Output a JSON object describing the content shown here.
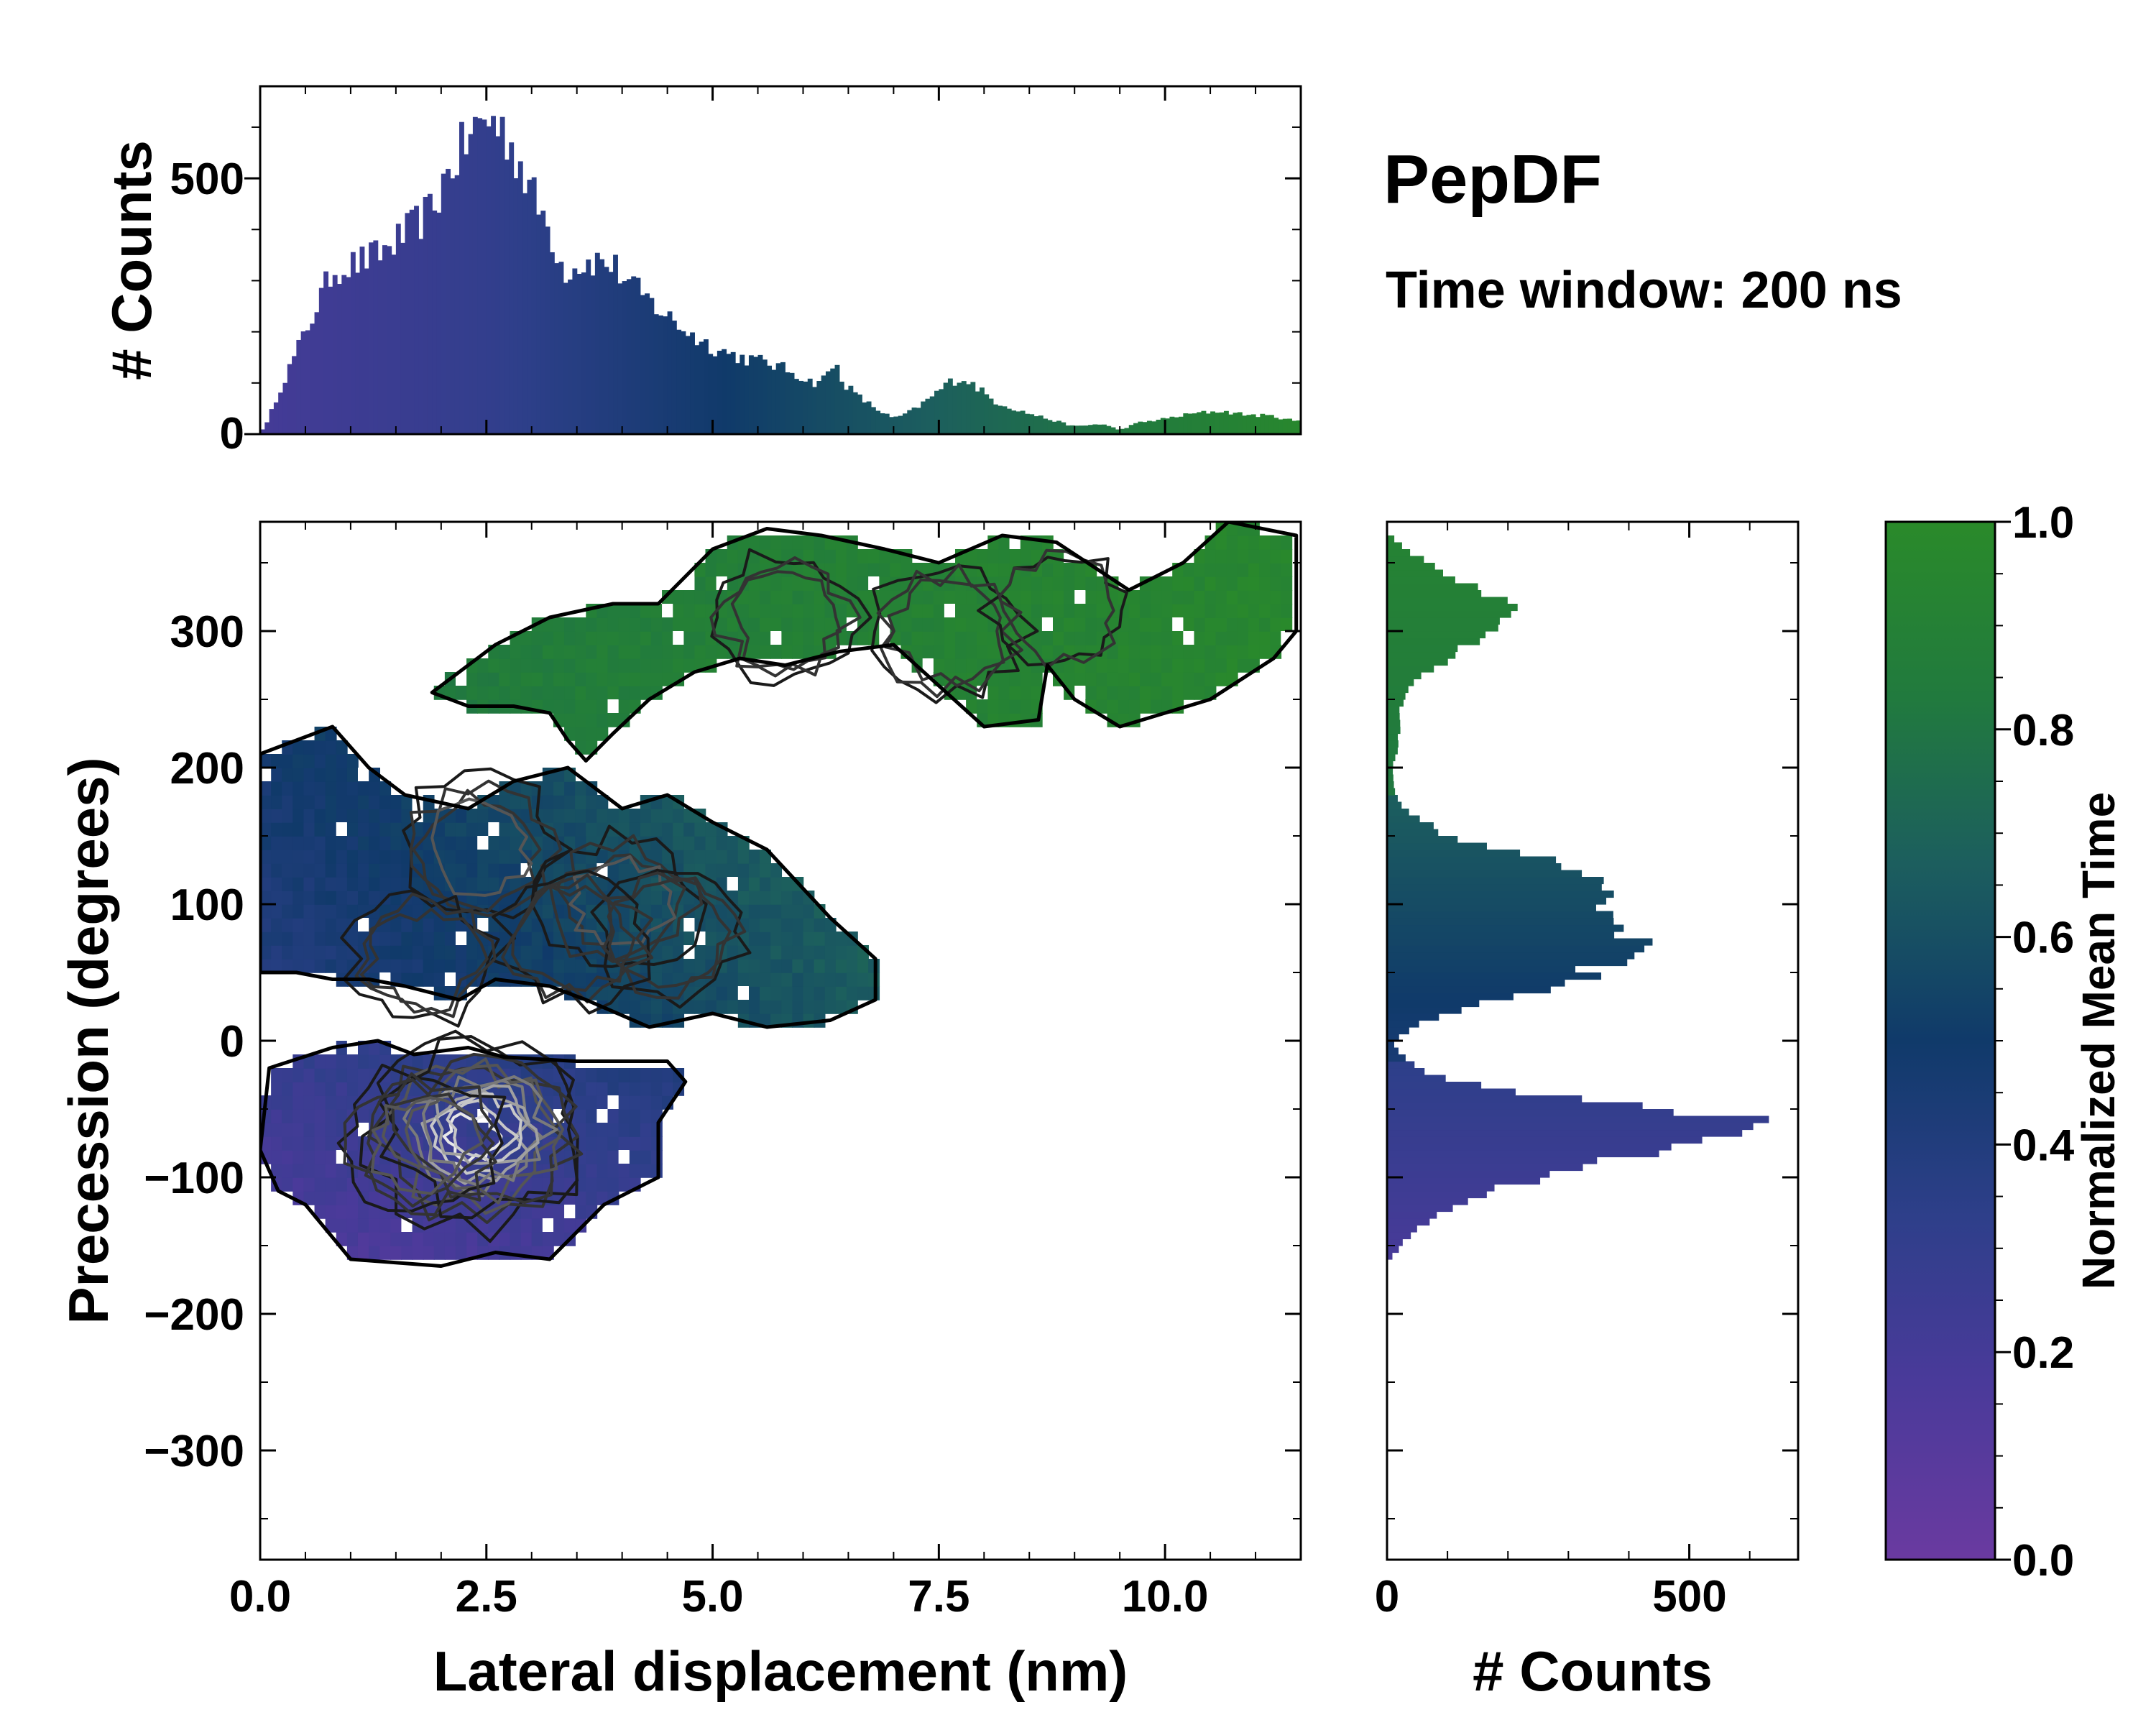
{
  "annotations": {
    "title": "PepDF",
    "subtitle": "Time window: 200 ns"
  },
  "colors": {
    "cmap": [
      "#6a3aa0",
      "#4a3a9a",
      "#2e3f8a",
      "#103a6a",
      "#1c5e5e",
      "#217a3e",
      "#2a8a2a"
    ],
    "axis": "#000000",
    "background": "#ffffff"
  },
  "chart_data": [
    {
      "id": "top_histogram",
      "type": "bar",
      "title": "",
      "xlabel": "",
      "ylabel": "# Counts",
      "xlim": [
        0,
        11.5
      ],
      "ylim": [
        0,
        680
      ],
      "x_ticks": [
        0,
        2.5,
        5.0,
        7.5,
        10.0
      ],
      "y_ticks": [
        0,
        500
      ],
      "y_tick_labels": [
        "0",
        "500"
      ],
      "bin_width": 0.05,
      "control_points": {
        "x": [
          0.05,
          0.2,
          0.5,
          0.8,
          1.0,
          1.3,
          1.6,
          1.9,
          2.1,
          2.35,
          2.5,
          2.65,
          2.8,
          3.0,
          3.2,
          3.35,
          3.5,
          3.7,
          3.9,
          4.1,
          4.3,
          4.5,
          4.8,
          5.0,
          5.3,
          5.6,
          5.9,
          6.1,
          6.25,
          6.35,
          6.45,
          6.6,
          6.8,
          7.0,
          7.2,
          7.4,
          7.6,
          7.75,
          7.9,
          8.1,
          8.4,
          8.7,
          9.0,
          9.3,
          9.5,
          9.7,
          10.0,
          10.3,
          10.6,
          10.9,
          11.2,
          11.45
        ],
        "counts": [
          10,
          80,
          200,
          320,
          330,
          350,
          390,
          440,
          520,
          590,
          620,
          600,
          560,
          470,
          400,
          320,
          330,
          340,
          330,
          290,
          260,
          230,
          190,
          170,
          150,
          140,
          120,
          100,
          110,
          140,
          100,
          75,
          50,
          30,
          45,
          70,
          100,
          110,
          95,
          65,
          45,
          30,
          15,
          20,
          8,
          22,
          30,
          40,
          45,
          38,
          35,
          25
        ]
      }
    },
    {
      "id": "main_map",
      "type": "heatmap",
      "title": "",
      "xlabel": "Lateral displacement (nm)",
      "ylabel": "Precession (degrees)",
      "xlim": [
        0,
        11.5
      ],
      "ylim": [
        -380,
        380
      ],
      "x_ticks": [
        0,
        2.5,
        5.0,
        7.5,
        10.0
      ],
      "x_tick_labels": [
        "0.0",
        "2.5",
        "5.0",
        "7.5",
        "10.0"
      ],
      "y_ticks": [
        -300,
        -200,
        -100,
        0,
        100,
        200,
        300
      ],
      "y_tick_labels": [
        "−300",
        "−200",
        "−100",
        "0",
        "100",
        "200",
        "300"
      ],
      "cell_x": 0.12,
      "cell_y": 10,
      "regions": [
        {
          "name": "negative-basin",
          "outline": [
            [
              0.0,
              -80
            ],
            [
              0.1,
              -20
            ],
            [
              0.8,
              -5
            ],
            [
              1.3,
              0
            ],
            [
              1.7,
              -10
            ],
            [
              2.3,
              -5
            ],
            [
              2.7,
              -12
            ],
            [
              3.5,
              -15
            ],
            [
              4.5,
              -15
            ],
            [
              4.7,
              -30
            ],
            [
              4.4,
              -60
            ],
            [
              4.4,
              -100
            ],
            [
              3.8,
              -120
            ],
            [
              3.5,
              -140
            ],
            [
              3.2,
              -160
            ],
            [
              2.6,
              -155
            ],
            [
              2.0,
              -165
            ],
            [
              1.0,
              -160
            ],
            [
              0.5,
              -120
            ],
            [
              0.2,
              -110
            ]
          ]
        },
        {
          "name": "middle-basin",
          "outline": [
            [
              0.0,
              50
            ],
            [
              0.0,
              210
            ],
            [
              0.4,
              220
            ],
            [
              0.8,
              230
            ],
            [
              1.2,
              200
            ],
            [
              1.6,
              180
            ],
            [
              2.3,
              170
            ],
            [
              2.8,
              190
            ],
            [
              3.4,
              200
            ],
            [
              4.0,
              170
            ],
            [
              4.5,
              180
            ],
            [
              5.0,
              160
            ],
            [
              5.6,
              140
            ],
            [
              6.3,
              90
            ],
            [
              6.8,
              60
            ],
            [
              6.8,
              30
            ],
            [
              6.3,
              15
            ],
            [
              5.6,
              10
            ],
            [
              5.0,
              20
            ],
            [
              4.3,
              10
            ],
            [
              3.6,
              30
            ],
            [
              3.2,
              40
            ],
            [
              2.6,
              45
            ],
            [
              2.2,
              30
            ],
            [
              1.6,
              40
            ],
            [
              1.2,
              45
            ],
            [
              0.8,
              45
            ],
            [
              0.4,
              50
            ]
          ]
        },
        {
          "name": "upper-band",
          "outline": [
            [
              1.9,
              255
            ],
            [
              2.6,
              290
            ],
            [
              3.2,
              310
            ],
            [
              3.9,
              320
            ],
            [
              4.4,
              320
            ],
            [
              5.0,
              360
            ],
            [
              5.6,
              375
            ],
            [
              6.2,
              370
            ],
            [
              6.9,
              360
            ],
            [
              7.5,
              350
            ],
            [
              8.2,
              370
            ],
            [
              8.8,
              365
            ],
            [
              9.6,
              330
            ],
            [
              10.2,
              350
            ],
            [
              10.7,
              380
            ],
            [
              11.45,
              370
            ],
            [
              11.45,
              300
            ],
            [
              11.2,
              280
            ],
            [
              10.5,
              250
            ],
            [
              9.5,
              230
            ],
            [
              9.0,
              250
            ],
            [
              8.7,
              275
            ],
            [
              8.6,
              235
            ],
            [
              8.0,
              230
            ],
            [
              7.5,
              260
            ],
            [
              7.0,
              290
            ],
            [
              6.4,
              285
            ],
            [
              5.8,
              275
            ],
            [
              5.3,
              280
            ],
            [
              4.8,
              270
            ],
            [
              4.3,
              250
            ],
            [
              3.9,
              225
            ],
            [
              3.6,
              205
            ],
            [
              3.4,
              220
            ],
            [
              3.2,
              240
            ],
            [
              2.8,
              245
            ],
            [
              2.3,
              245
            ]
          ]
        }
      ],
      "hotspots": [
        {
          "x": 2.35,
          "y": -70,
          "weight": 1.0
        },
        {
          "x": 2.5,
          "y": -65,
          "weight": 0.85
        },
        {
          "x": 1.8,
          "y": -75,
          "weight": 0.6
        },
        {
          "x": 2.4,
          "y": 140,
          "weight": 0.55
        },
        {
          "x": 4.0,
          "y": 100,
          "weight": 0.5
        },
        {
          "x": 4.5,
          "y": 80,
          "weight": 0.45
        },
        {
          "x": 3.5,
          "y": 75,
          "weight": 0.45
        },
        {
          "x": 1.8,
          "y": 60,
          "weight": 0.4
        },
        {
          "x": 5.8,
          "y": 310,
          "weight": 0.4
        },
        {
          "x": 7.6,
          "y": 300,
          "weight": 0.45
        },
        {
          "x": 8.8,
          "y": 315,
          "weight": 0.3
        }
      ]
    },
    {
      "id": "right_histogram",
      "type": "bar",
      "orientation": "horizontal",
      "title": "",
      "xlabel": "# Counts",
      "ylabel": "",
      "xlim": [
        0,
        680
      ],
      "ylim": [
        -380,
        380
      ],
      "x_ticks": [
        0,
        500
      ],
      "x_tick_labels": [
        "0",
        "500"
      ],
      "bin_width": 5,
      "control_points": {
        "y": [
          -160,
          -140,
          -120,
          -100,
          -85,
          -70,
          -60,
          -50,
          -40,
          -30,
          -20,
          -10,
          0,
          10,
          20,
          30,
          40,
          50,
          60,
          70,
          80,
          90,
          100,
          110,
          120,
          130,
          150,
          170,
          180,
          190,
          200,
          220,
          240,
          260,
          280,
          300,
          320,
          340,
          360,
          370
        ],
        "counts": [
          5,
          40,
          110,
          250,
          400,
          560,
          600,
          480,
          280,
          120,
          50,
          20,
          10,
          50,
          90,
          200,
          330,
          340,
          370,
          440,
          350,
          360,
          330,
          360,
          350,
          280,
          100,
          30,
          15,
          10,
          10,
          20,
          20,
          40,
          100,
          180,
          210,
          100,
          30,
          5
        ]
      }
    },
    {
      "id": "colorbar",
      "type": "heatmap",
      "title": "",
      "xlabel": "",
      "ylabel": "Normalized Mean Time",
      "ylim": [
        0.0,
        1.0
      ],
      "y_ticks": [
        0.0,
        0.2,
        0.4,
        0.6,
        0.8,
        1.0
      ],
      "y_tick_labels": [
        "0.0",
        "0.2",
        "0.4",
        "0.6",
        "0.8",
        "1.0"
      ]
    }
  ]
}
